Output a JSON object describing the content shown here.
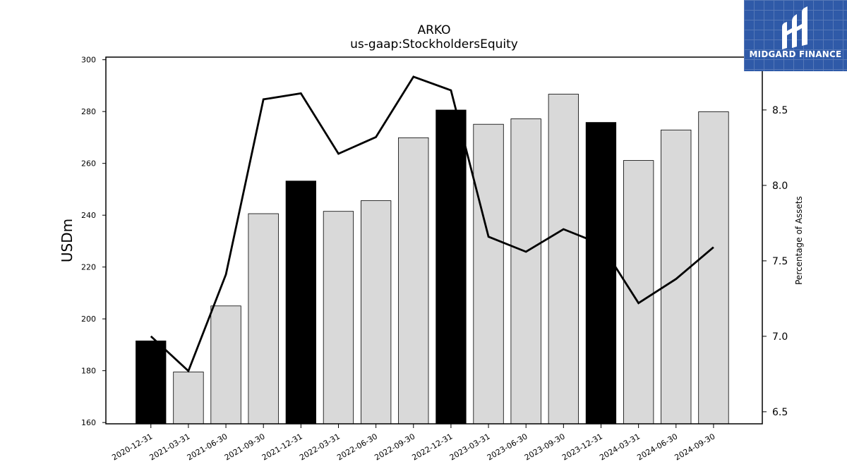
{
  "header": {
    "title": "ARKO",
    "subtitle": "us-gaap:StockholdersEquity"
  },
  "logo": {
    "text": "MIDGARD FINANCE",
    "background_color": "#2f5aa8"
  },
  "chart_data": {
    "type": "bar",
    "categories": [
      "2020-12-31",
      "2021-03-31",
      "2021-06-30",
      "2021-09-30",
      "2021-12-31",
      "2022-03-31",
      "2022-06-30",
      "2022-09-30",
      "2022-12-31",
      "2023-03-31",
      "2023-06-30",
      "2023-09-30",
      "2023-12-31",
      "2024-03-31",
      "2024-06-30",
      "2024-09-30"
    ],
    "series": [
      {
        "axis": "left",
        "kind": "bar",
        "values": [
          191.5,
          179.5,
          205.0,
          240.6,
          253.2,
          241.5,
          245.6,
          269.9,
          280.6,
          275.1,
          277.2,
          286.7,
          275.8,
          261.1,
          272.9,
          279.9
        ],
        "bar_colors": [
          "#000000",
          "#d9d9d9",
          "#d9d9d9",
          "#d9d9d9",
          "#000000",
          "#d9d9d9",
          "#d9d9d9",
          "#d9d9d9",
          "#000000",
          "#d9d9d9",
          "#d9d9d9",
          "#d9d9d9",
          "#000000",
          "#d9d9d9",
          "#d9d9d9",
          "#d9d9d9"
        ]
      },
      {
        "axis": "right",
        "kind": "line",
        "color": "#000000",
        "values": [
          7.0,
          6.77,
          7.41,
          8.57,
          8.61,
          8.21,
          8.32,
          8.72,
          8.63,
          7.66,
          7.56,
          7.71,
          7.61,
          7.22,
          7.38,
          7.59
        ]
      }
    ],
    "ylabel": "USDm",
    "ylabel_right": "Percentage of Assets",
    "ylim": [
      159.5,
      301
    ],
    "ylim_right": [
      6.42,
      8.85
    ],
    "yticks": [
      160,
      180,
      200,
      220,
      240,
      260,
      280,
      300
    ],
    "yticks_right": [
      "6.5",
      "7.0",
      "7.5",
      "8.0",
      "8.5"
    ],
    "grid": false,
    "legend": "none"
  }
}
